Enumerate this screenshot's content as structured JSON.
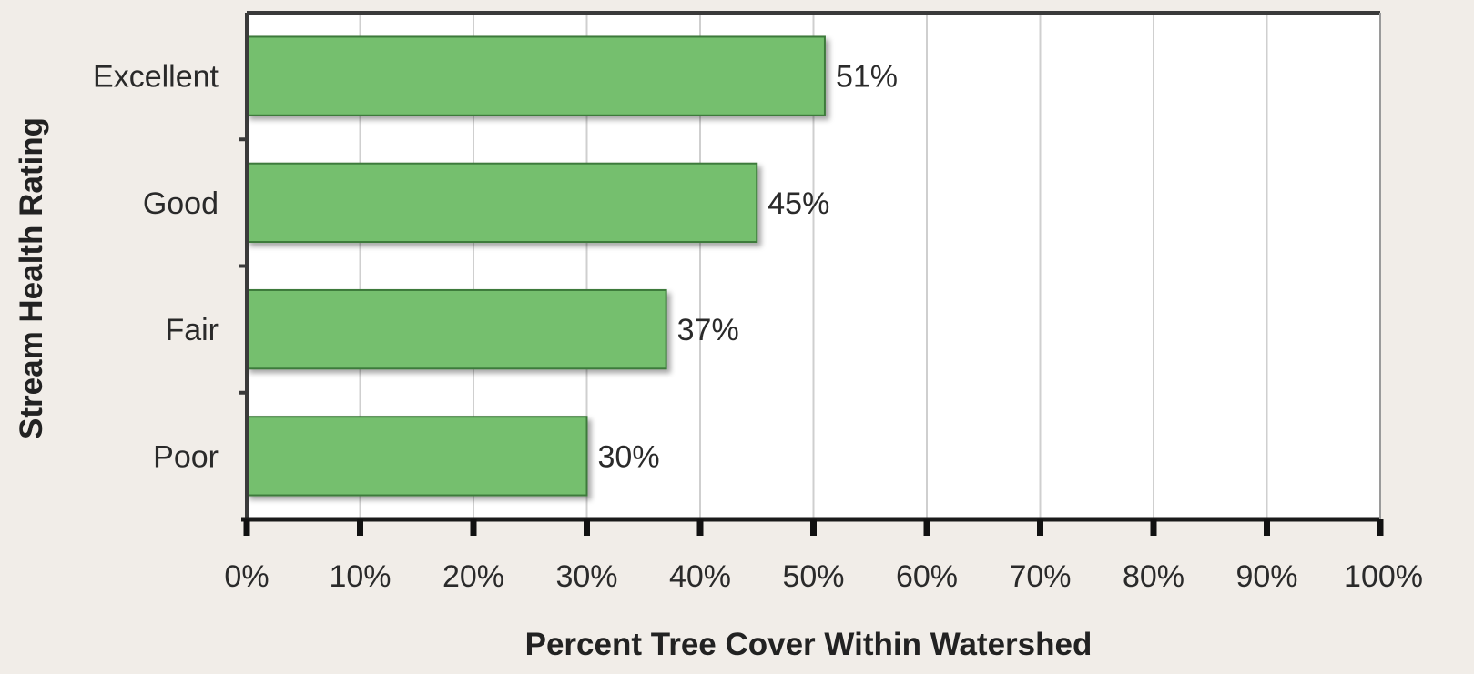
{
  "chart_data": {
    "type": "bar",
    "orientation": "horizontal",
    "categories": [
      "Excellent",
      "Good",
      "Fair",
      "Poor"
    ],
    "values": [
      51,
      45,
      37,
      30
    ],
    "data_labels": [
      "51%",
      "45%",
      "37%",
      "30%"
    ],
    "xlabel": "Percent Tree Cover Within Watershed",
    "ylabel": "Stream Health Rating",
    "xlim": [
      0,
      100
    ],
    "x_ticks": [
      0,
      10,
      20,
      30,
      40,
      50,
      60,
      70,
      80,
      90,
      100
    ],
    "x_tick_labels": [
      "0%",
      "10%",
      "20%",
      "30%",
      "40%",
      "50%",
      "60%",
      "70%",
      "80%",
      "90%",
      "100%"
    ],
    "grid": "vertical",
    "legend": "none",
    "colors": {
      "bar": "#74bf6e",
      "bar_edge": "#3e7a3a",
      "plot_bg": "#ffffff",
      "page_bg": "#f1ede8",
      "grid": "#cfcfcf"
    }
  }
}
